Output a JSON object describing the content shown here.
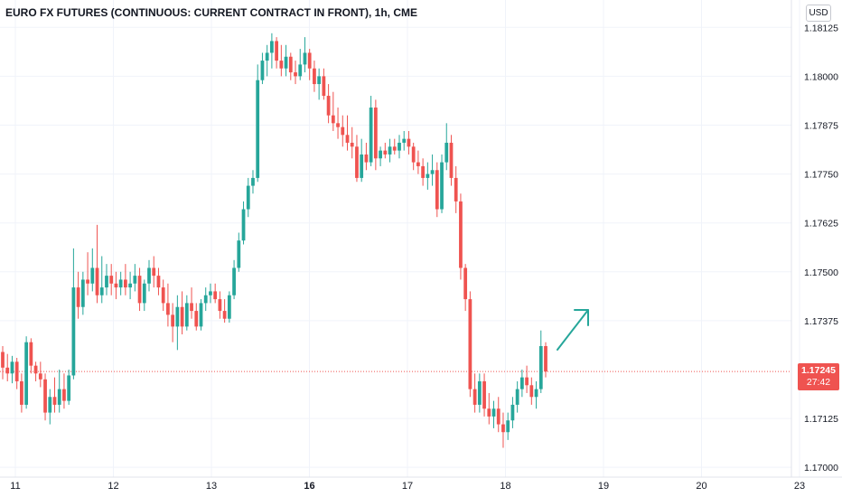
{
  "header": {
    "title": "EURO FX FUTURES (CONTINUOUS: CURRENT CONTRACT IN FRONT), 1h, CME",
    "currency": "USD"
  },
  "price_tag": {
    "price": "1.17245",
    "countdown": "27:42"
  },
  "colors": {
    "up": "#26a69a",
    "down": "#ef5350",
    "grid": "#f0f3fa",
    "axis_text": "#131722",
    "arrow": "#26a69a"
  },
  "chart_data": {
    "type": "candlestick",
    "title": "EURO FX FUTURES (CONTINUOUS: CURRENT CONTRACT IN FRONT), 1h, CME",
    "x_ticks": [
      "11",
      "12",
      "13",
      "16",
      "17",
      "18",
      "19",
      "20",
      "23"
    ],
    "y_ticks": [
      "1.18125",
      "1.18000",
      "1.17875",
      "1.17750",
      "1.17625",
      "1.17500",
      "1.17375",
      "1.17125",
      "1.17000"
    ],
    "ylim": [
      1.16975,
      1.18195
    ],
    "last_price": 1.17245,
    "grid": true,
    "annotation": "upward arrow",
    "candles": [
      [
        1.17295,
        1.1731,
        1.17225,
        1.17255
      ],
      [
        1.17255,
        1.1729,
        1.1722,
        1.1724
      ],
      [
        1.1724,
        1.17285,
        1.17215,
        1.1727
      ],
      [
        1.1727,
        1.1728,
        1.172,
        1.1722
      ],
      [
        1.1722,
        1.1724,
        1.1714,
        1.1716
      ],
      [
        1.1716,
        1.17335,
        1.1715,
        1.1732
      ],
      [
        1.1732,
        1.1733,
        1.1724,
        1.1726
      ],
      [
        1.1726,
        1.1727,
        1.1722,
        1.1724
      ],
      [
        1.1724,
        1.1727,
        1.17205,
        1.17225
      ],
      [
        1.17225,
        1.1724,
        1.1712,
        1.1714
      ],
      [
        1.1714,
        1.172,
        1.1711,
        1.1718
      ],
      [
        1.1718,
        1.1723,
        1.1714,
        1.1716
      ],
      [
        1.1716,
        1.1725,
        1.1714,
        1.172
      ],
      [
        1.172,
        1.1724,
        1.1715,
        1.1717
      ],
      [
        1.1717,
        1.1725,
        1.1716,
        1.17235
      ],
      [
        1.17235,
        1.1756,
        1.17225,
        1.1746
      ],
      [
        1.1746,
        1.175,
        1.1738,
        1.1741
      ],
      [
        1.1741,
        1.175,
        1.1739,
        1.1748
      ],
      [
        1.1748,
        1.1755,
        1.1744,
        1.1747
      ],
      [
        1.1747,
        1.1756,
        1.1745,
        1.1751
      ],
      [
        1.1751,
        1.1762,
        1.1742,
        1.1744
      ],
      [
        1.1744,
        1.1754,
        1.1742,
        1.1746
      ],
      [
        1.1746,
        1.1752,
        1.1744,
        1.1749
      ],
      [
        1.1749,
        1.1752,
        1.1744,
        1.1747
      ],
      [
        1.1747,
        1.175,
        1.1743,
        1.1746
      ],
      [
        1.1746,
        1.175,
        1.1744,
        1.1748
      ],
      [
        1.1748,
        1.1752,
        1.1744,
        1.1746
      ],
      [
        1.1746,
        1.175,
        1.1743,
        1.1747
      ],
      [
        1.1747,
        1.1752,
        1.1745,
        1.1749
      ],
      [
        1.1749,
        1.1751,
        1.174,
        1.1742
      ],
      [
        1.1742,
        1.1748,
        1.174,
        1.1747
      ],
      [
        1.1747,
        1.1753,
        1.1745,
        1.1751
      ],
      [
        1.1751,
        1.1754,
        1.1746,
        1.1749
      ],
      [
        1.1749,
        1.1751,
        1.1744,
        1.1746
      ],
      [
        1.1746,
        1.1748,
        1.174,
        1.1742
      ],
      [
        1.1742,
        1.1747,
        1.1736,
        1.1739
      ],
      [
        1.1739,
        1.1742,
        1.1732,
        1.1736
      ],
      [
        1.1736,
        1.1744,
        1.173,
        1.1741
      ],
      [
        1.1741,
        1.1745,
        1.1734,
        1.1736
      ],
      [
        1.1736,
        1.1744,
        1.1735,
        1.1742
      ],
      [
        1.1742,
        1.1746,
        1.1738,
        1.174
      ],
      [
        1.174,
        1.1742,
        1.1735,
        1.1736
      ],
      [
        1.1736,
        1.1743,
        1.1735,
        1.1742
      ],
      [
        1.1742,
        1.1746,
        1.174,
        1.1744
      ],
      [
        1.1744,
        1.1747,
        1.1742,
        1.1745
      ],
      [
        1.1745,
        1.1747,
        1.1742,
        1.1743
      ],
      [
        1.1743,
        1.1745,
        1.1738,
        1.174
      ],
      [
        1.174,
        1.1743,
        1.1737,
        1.1738
      ],
      [
        1.1738,
        1.1745,
        1.1737,
        1.1744
      ],
      [
        1.1744,
        1.1753,
        1.1743,
        1.1751
      ],
      [
        1.1751,
        1.176,
        1.175,
        1.1758
      ],
      [
        1.1758,
        1.1768,
        1.1757,
        1.1766
      ],
      [
        1.1766,
        1.1774,
        1.1764,
        1.1772
      ],
      [
        1.1772,
        1.1776,
        1.177,
        1.1774
      ],
      [
        1.1774,
        1.1803,
        1.1773,
        1.1799
      ],
      [
        1.1799,
        1.1806,
        1.1798,
        1.1804
      ],
      [
        1.1804,
        1.1808,
        1.18,
        1.1806
      ],
      [
        1.1806,
        1.1811,
        1.1802,
        1.1809
      ],
      [
        1.1809,
        1.181,
        1.1802,
        1.1804
      ],
      [
        1.1804,
        1.1808,
        1.18,
        1.1802
      ],
      [
        1.1802,
        1.1808,
        1.18,
        1.1805
      ],
      [
        1.1805,
        1.1806,
        1.1799,
        1.1801
      ],
      [
        1.1801,
        1.1804,
        1.1798,
        1.18
      ],
      [
        1.18,
        1.1807,
        1.1799,
        1.1803
      ],
      [
        1.1803,
        1.181,
        1.1801,
        1.1806
      ],
      [
        1.1806,
        1.1807,
        1.1799,
        1.1802
      ],
      [
        1.1802,
        1.1804,
        1.1796,
        1.1798
      ],
      [
        1.1798,
        1.1802,
        1.1794,
        1.18
      ],
      [
        1.18,
        1.1802,
        1.1794,
        1.1795
      ],
      [
        1.1795,
        1.1798,
        1.1788,
        1.179
      ],
      [
        1.179,
        1.1796,
        1.1786,
        1.1788
      ],
      [
        1.1788,
        1.1792,
        1.1784,
        1.1787
      ],
      [
        1.1787,
        1.179,
        1.1782,
        1.1785
      ],
      [
        1.1785,
        1.179,
        1.1781,
        1.1783
      ],
      [
        1.1783,
        1.1787,
        1.1779,
        1.1782
      ],
      [
        1.1782,
        1.1785,
        1.1773,
        1.1774
      ],
      [
        1.1774,
        1.1784,
        1.1773,
        1.178
      ],
      [
        1.178,
        1.1783,
        1.1776,
        1.1778
      ],
      [
        1.1778,
        1.1795,
        1.1777,
        1.1792
      ],
      [
        1.1792,
        1.1794,
        1.1776,
        1.1779
      ],
      [
        1.1779,
        1.1782,
        1.1777,
        1.1781
      ],
      [
        1.1781,
        1.1783,
        1.1779,
        1.178
      ],
      [
        1.178,
        1.1784,
        1.1778,
        1.1782
      ],
      [
        1.1782,
        1.1784,
        1.178,
        1.1781
      ],
      [
        1.1781,
        1.1785,
        1.1779,
        1.1783
      ],
      [
        1.1783,
        1.1786,
        1.1781,
        1.1784
      ],
      [
        1.1784,
        1.1786,
        1.178,
        1.1782
      ],
      [
        1.1782,
        1.1783,
        1.1776,
        1.1778
      ],
      [
        1.1778,
        1.1781,
        1.1775,
        1.1777
      ],
      [
        1.1777,
        1.1779,
        1.1772,
        1.1774
      ],
      [
        1.1774,
        1.1778,
        1.1771,
        1.1775
      ],
      [
        1.1775,
        1.178,
        1.1772,
        1.1776
      ],
      [
        1.1776,
        1.1778,
        1.1764,
        1.1766
      ],
      [
        1.1766,
        1.178,
        1.1765,
        1.1778
      ],
      [
        1.1778,
        1.1788,
        1.1776,
        1.1783
      ],
      [
        1.1783,
        1.1785,
        1.1772,
        1.1774
      ],
      [
        1.1774,
        1.1777,
        1.1765,
        1.1768
      ],
      [
        1.1768,
        1.177,
        1.1748,
        1.1751
      ],
      [
        1.1751,
        1.1752,
        1.174,
        1.1743
      ],
      [
        1.1743,
        1.1745,
        1.1718,
        1.172
      ],
      [
        1.172,
        1.1724,
        1.1714,
        1.1716
      ],
      [
        1.1716,
        1.1724,
        1.1714,
        1.1722
      ],
      [
        1.1722,
        1.1724,
        1.1713,
        1.1715
      ],
      [
        1.1715,
        1.1719,
        1.1711,
        1.1713
      ],
      [
        1.1713,
        1.1717,
        1.171,
        1.1715
      ],
      [
        1.1715,
        1.1718,
        1.1709,
        1.1711
      ],
      [
        1.1711,
        1.1714,
        1.1705,
        1.1709
      ],
      [
        1.1709,
        1.1714,
        1.1707,
        1.1712
      ],
      [
        1.1712,
        1.1718,
        1.171,
        1.1716
      ],
      [
        1.1716,
        1.1722,
        1.1714,
        1.172
      ],
      [
        1.172,
        1.1725,
        1.1718,
        1.1723
      ],
      [
        1.1723,
        1.1726,
        1.1719,
        1.1721
      ],
      [
        1.1721,
        1.1723,
        1.1716,
        1.1718
      ],
      [
        1.1718,
        1.1722,
        1.1715,
        1.172
      ],
      [
        1.172,
        1.1735,
        1.1719,
        1.1731
      ],
      [
        1.1731,
        1.1732,
        1.1723,
        1.17245
      ]
    ]
  }
}
